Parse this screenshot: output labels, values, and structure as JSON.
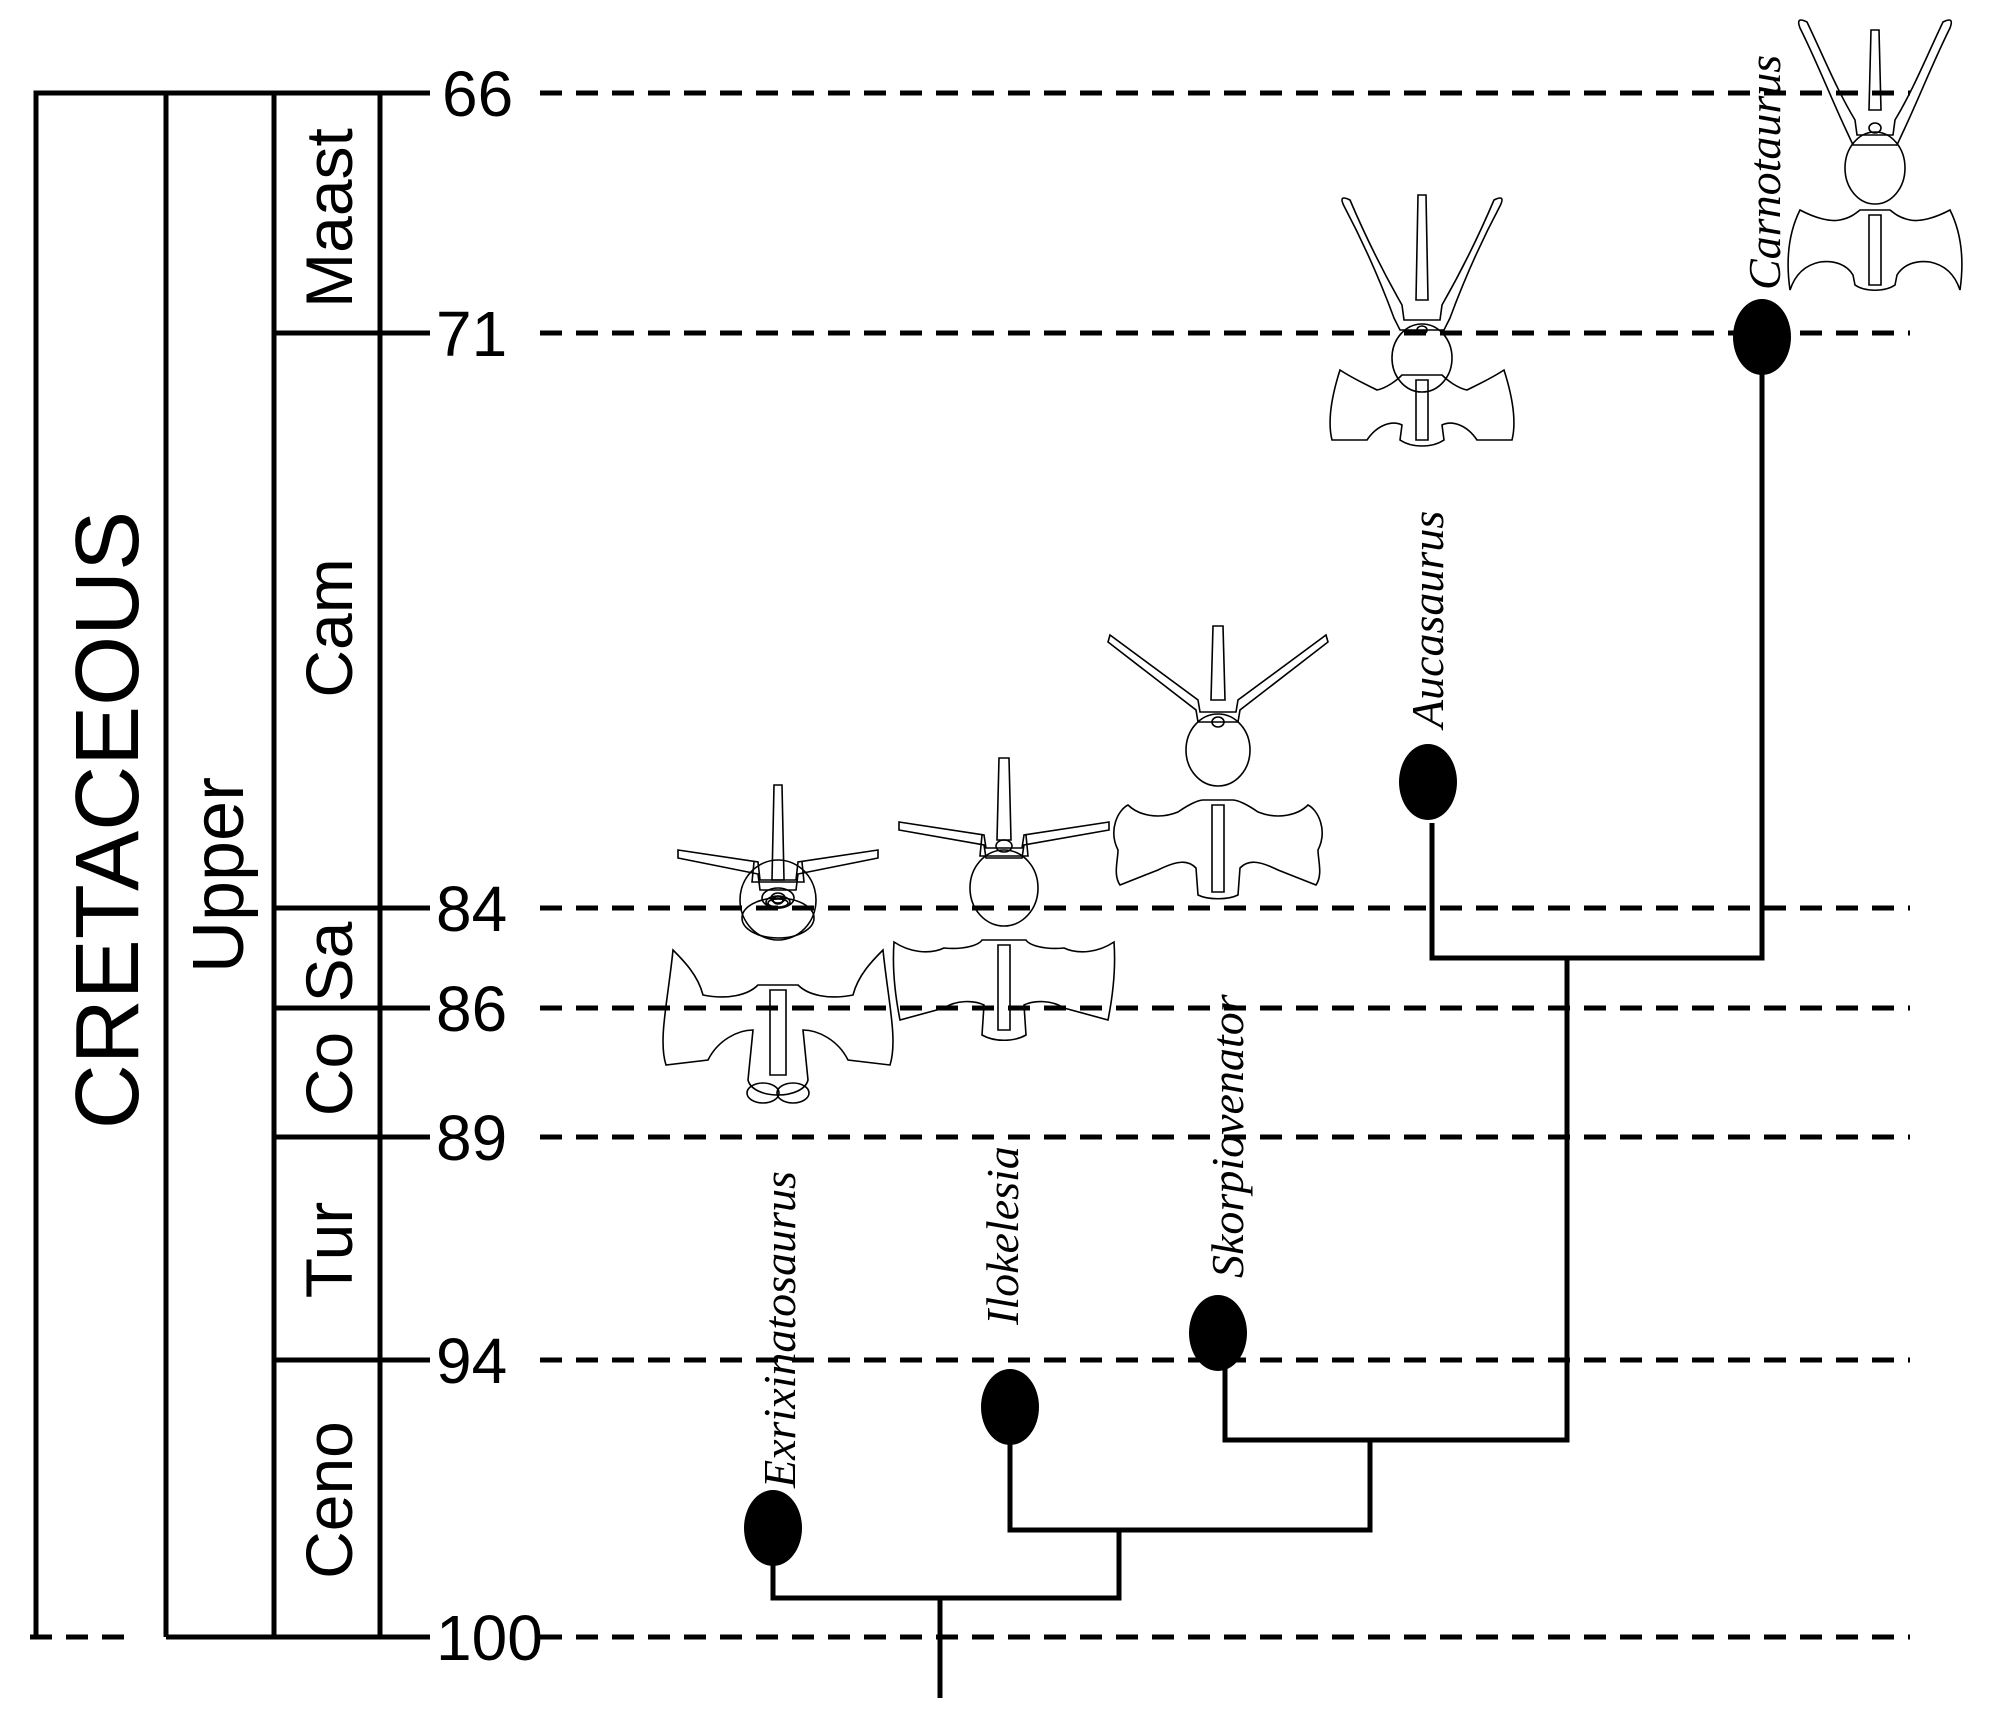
{
  "timescale": {
    "period": "CRETACEOUS",
    "epoch": "Upper",
    "stages": [
      "Maast",
      "Cam",
      "Sa",
      "Co",
      "Tur",
      "Ceno"
    ],
    "ages": [
      "66",
      "71",
      "84",
      "86",
      "89",
      "94",
      "100"
    ]
  },
  "taxa": [
    {
      "name": "Exrixinatosaurus"
    },
    {
      "name": "Ilokelesia"
    },
    {
      "name": "Skorpiovenator"
    },
    {
      "name": "Aucasaurus"
    },
    {
      "name": "Carnotaurus"
    }
  ],
  "colors": {
    "ink": "#000000",
    "background": "#ffffff"
  }
}
